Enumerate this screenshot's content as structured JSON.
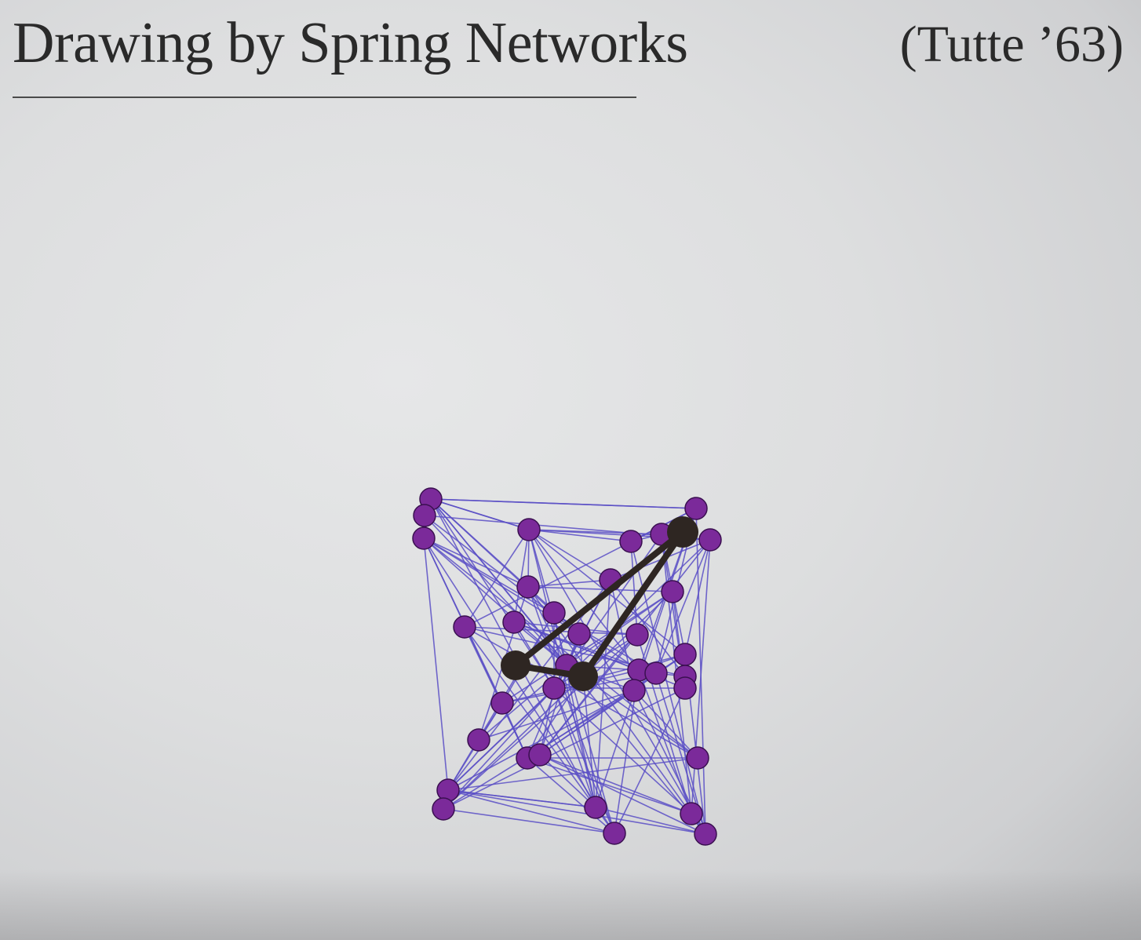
{
  "slide": {
    "title": "Drawing by Spring Networks",
    "citation": "(Tutte ’63)"
  },
  "colors": {
    "background": "#dddedf",
    "text": "#2a2a2a",
    "edge": "#5a4fc6",
    "node_fill": "#7b2a9a",
    "node_stroke": "#3a1050",
    "highlight": "#2e2622"
  }
}
